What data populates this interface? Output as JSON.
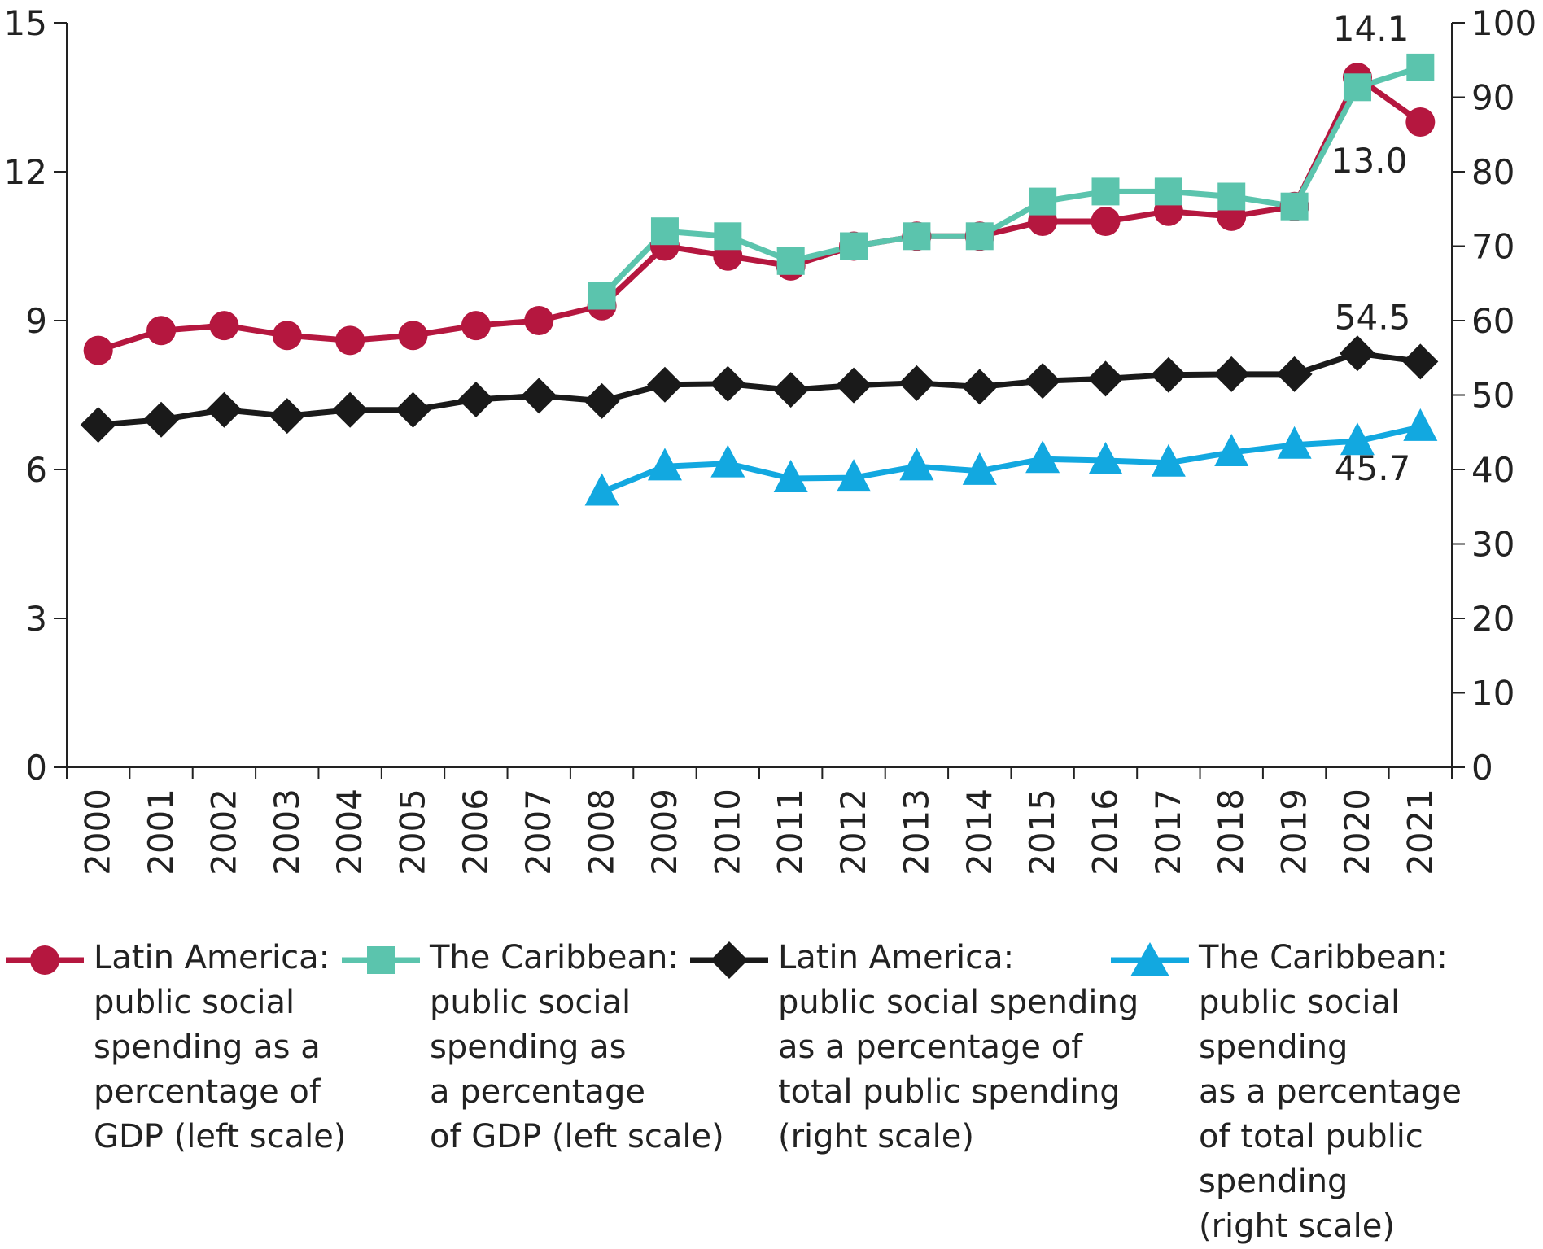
{
  "chart_data": {
    "type": "line",
    "categories": [
      "2000",
      "2001",
      "2002",
      "2003",
      "2004",
      "2005",
      "2006",
      "2007",
      "2008",
      "2009",
      "2010",
      "2011",
      "2012",
      "2013",
      "2014",
      "2015",
      "2016",
      "2017",
      "2018",
      "2019",
      "2020",
      "2021"
    ],
    "left_axis": {
      "range": [
        0,
        15
      ],
      "ticks": [
        "0",
        "3",
        "6",
        "9",
        "12",
        "15"
      ],
      "tick_values": [
        0,
        3,
        6,
        9,
        12,
        15
      ]
    },
    "right_axis": {
      "range": [
        0,
        100
      ],
      "ticks": [
        "0",
        "10",
        "20",
        "30",
        "40",
        "50",
        "60",
        "70",
        "80",
        "90",
        "100"
      ],
      "tick_values": [
        0,
        10,
        20,
        30,
        40,
        50,
        60,
        70,
        80,
        90,
        100
      ]
    },
    "series": [
      {
        "id": "la_gdp",
        "name": "Latin America: public social spending as a percentage of GDP (left scale)",
        "axis": "left",
        "color": "#b5173f",
        "marker": "circle",
        "values": [
          8.4,
          8.8,
          8.9,
          8.7,
          8.6,
          8.7,
          8.9,
          9.0,
          9.3,
          10.5,
          10.3,
          10.1,
          10.5,
          10.7,
          10.7,
          11.0,
          11.0,
          11.2,
          11.1,
          11.3,
          13.9,
          13.0
        ]
      },
      {
        "id": "car_gdp",
        "name": "The Caribbean: public social spending as a percentage of GDP (left scale)",
        "axis": "left",
        "color": "#5bc4ad",
        "marker": "square",
        "values": [
          null,
          null,
          null,
          null,
          null,
          null,
          null,
          null,
          9.5,
          10.8,
          10.7,
          10.2,
          10.5,
          10.7,
          10.7,
          11.4,
          11.6,
          11.6,
          11.5,
          11.3,
          13.7,
          14.1
        ]
      },
      {
        "id": "la_total",
        "name": "Latin America: public social spending as a percentage of total public spending (right scale)",
        "axis": "right",
        "color": "#1a1a1a",
        "marker": "diamond",
        "values": [
          46.0,
          46.7,
          48.0,
          47.2,
          48.0,
          48.0,
          49.4,
          49.9,
          49.2,
          51.4,
          51.5,
          50.7,
          51.3,
          51.6,
          51.1,
          51.9,
          52.2,
          52.7,
          52.8,
          52.8,
          55.6,
          54.5
        ]
      },
      {
        "id": "car_total",
        "name": "The Caribbean: public social spending as a percentage of total public spending (right scale)",
        "axis": "right",
        "color": "#12a8e0",
        "marker": "triangle",
        "values": [
          null,
          null,
          null,
          null,
          null,
          null,
          null,
          null,
          37.0,
          40.4,
          40.8,
          38.8,
          38.9,
          40.4,
          39.8,
          41.4,
          41.2,
          40.9,
          42.3,
          43.3,
          43.8,
          45.7
        ]
      }
    ],
    "annotations": [
      {
        "text": "14.1",
        "series": "car_gdp",
        "index": 21
      },
      {
        "text": "13.0",
        "series": "la_gdp",
        "index": 21
      },
      {
        "text": "54.5",
        "series": "la_total",
        "index": 21
      },
      {
        "text": "45.7",
        "series": "car_total",
        "index": 21
      }
    ],
    "legend": [
      {
        "label": "Latin America:\npublic social\nspending as a\npercentage of\nGDP (left scale)",
        "marker": "circle",
        "color": "#b5173f"
      },
      {
        "label": "The Caribbean:\npublic social\nspending as\na percentage\nof GDP (left scale)",
        "marker": "square",
        "color": "#5bc4ad"
      },
      {
        "label": "Latin America:\npublic social spending\nas a percentage of\ntotal public spending\n(right scale)",
        "marker": "diamond",
        "color": "#1a1a1a"
      },
      {
        "label": "The Caribbean:\npublic social spending\nas a percentage\nof total public spending\n(right scale)",
        "marker": "triangle",
        "color": "#12a8e0"
      }
    ]
  }
}
